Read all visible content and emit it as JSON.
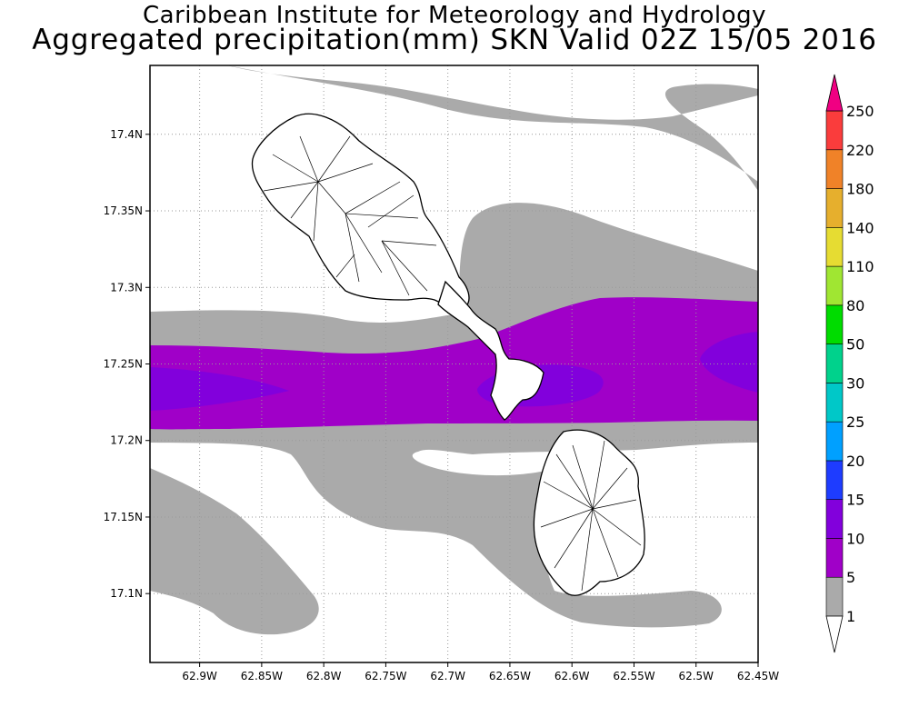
{
  "header": {
    "title": "Caribbean Institute for Meteorology and Hydrology",
    "subtitle": "Aggregated precipitation(mm) SKN Valid 02Z 15/05 2016"
  },
  "map": {
    "extent": {
      "lon_min": -62.94,
      "lon_max": -62.45,
      "lat_min": 17.055,
      "lat_max": 17.445
    },
    "lat_ticks": [
      "17.4N",
      "17.35N",
      "17.3N",
      "17.25N",
      "17.2N",
      "17.15N",
      "17.1N"
    ],
    "lon_ticks": [
      "62.9W",
      "62.85W",
      "62.8W",
      "62.75W",
      "62.7W",
      "62.65W",
      "62.6W",
      "62.55W",
      "62.5W",
      "62.45W"
    ],
    "islands": [
      "St Kitts",
      "Nevis"
    ]
  },
  "colorbar": {
    "levels": [
      "1",
      "5",
      "10",
      "15",
      "20",
      "25",
      "30",
      "50",
      "80",
      "110",
      "140",
      "180",
      "220",
      "250"
    ],
    "colors": [
      "#ffffff",
      "#aaaaaa",
      "#a000c8",
      "#8200dc",
      "#1e3cff",
      "#00a0ff",
      "#00c8c8",
      "#00d28c",
      "#00dc00",
      "#a0e632",
      "#e6dc32",
      "#e6af2d",
      "#f08228",
      "#fa3c3c",
      "#f00082"
    ]
  }
}
